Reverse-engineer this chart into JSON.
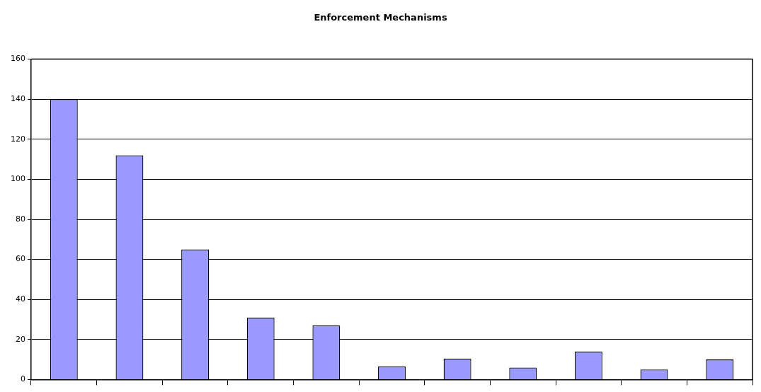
{
  "chart_data": {
    "type": "bar",
    "title": "Enforcement Mechanisms",
    "categories": [
      null,
      null,
      null,
      null,
      null,
      null,
      null,
      null,
      null,
      null,
      null
    ],
    "values": [
      140,
      112,
      65,
      31,
      27,
      6.5,
      10.5,
      6,
      14,
      5,
      10
    ],
    "color": "#9999ff",
    "ylim": [
      0,
      160
    ],
    "yticks": [
      0,
      20,
      40,
      60,
      80,
      100,
      120,
      140,
      160
    ],
    "grid": "y",
    "legend": false
  }
}
